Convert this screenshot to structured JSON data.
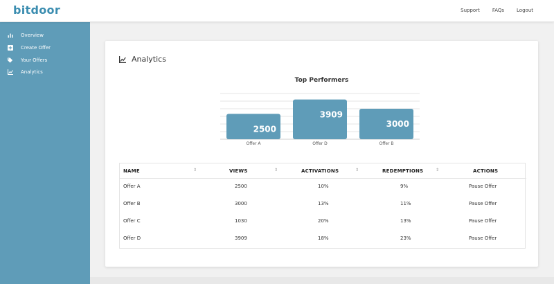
{
  "app": {
    "logo": "bitdoor"
  },
  "header": {
    "links": [
      "Support",
      "FAQs",
      "Logout"
    ]
  },
  "sidebar": {
    "items": [
      {
        "label": "Overview",
        "icon": "bar-chart-icon"
      },
      {
        "label": "Create Offer",
        "icon": "plus-square-icon"
      },
      {
        "label": "Your Offers",
        "icon": "tags-icon"
      },
      {
        "label": "Analytics",
        "icon": "line-chart-icon"
      }
    ]
  },
  "page": {
    "title": "Analytics"
  },
  "chart_data": {
    "type": "bar",
    "title": "Top Performers",
    "categories": [
      "Offer A",
      "Offer D",
      "Offer B"
    ],
    "values": [
      2500,
      3909,
      3000
    ],
    "ylim": [
      0,
      4500
    ],
    "grid": true,
    "bar_color": "#5f9cb8"
  },
  "table": {
    "columns": [
      "NAME",
      "VIEWS",
      "ACTIVATIONS",
      "REDEMPTIONS",
      "ACTIONS"
    ],
    "rows": [
      {
        "name": "Offer A",
        "views": "2500",
        "activations": "10%",
        "redemptions": "9%",
        "action": "Pause Offer"
      },
      {
        "name": "Offer B",
        "views": "3000",
        "activations": "13%",
        "redemptions": "11%",
        "action": "Pause Offer"
      },
      {
        "name": "Offer C",
        "views": "1030",
        "activations": "20%",
        "redemptions": "13%",
        "action": "Pause Offer"
      },
      {
        "name": "Offer D",
        "views": "3909",
        "activations": "18%",
        "redemptions": "23%",
        "action": "Pause Offer"
      }
    ]
  },
  "colors": {
    "accent": "#3b8db0",
    "sidebar": "#5f9cb8"
  }
}
